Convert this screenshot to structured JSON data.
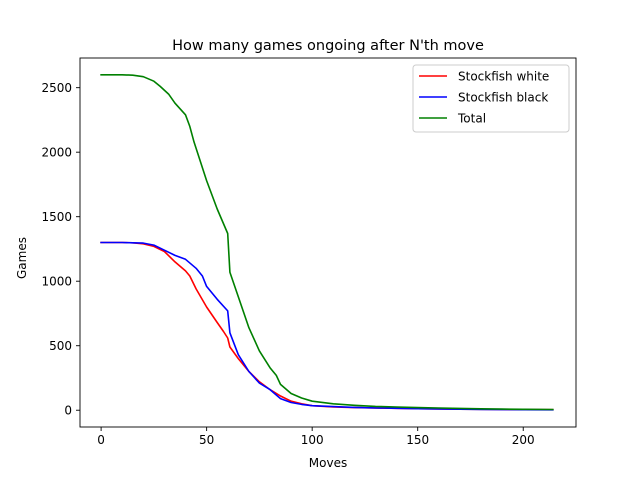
{
  "chart_data": {
    "type": "line",
    "title": "How many games ongoing after N'th move",
    "xlabel": "Moves",
    "ylabel": "Games",
    "xlim": [
      -10,
      225
    ],
    "ylim": [
      -130,
      2730
    ],
    "xticks": [
      0,
      50,
      100,
      150,
      200
    ],
    "yticks": [
      0,
      500,
      1000,
      1500,
      2000,
      2500
    ],
    "grid": false,
    "legend_position": "top-right",
    "series": [
      {
        "name": "Stockfish white",
        "color": "#ff0000",
        "x": [
          0,
          5,
          10,
          15,
          20,
          25,
          30,
          35,
          40,
          42,
          45,
          50,
          55,
          58,
          60,
          61,
          65,
          70,
          75,
          80,
          85,
          90,
          95,
          100,
          110,
          120,
          130,
          140,
          150,
          160,
          170,
          180,
          190,
          200,
          214
        ],
        "y": [
          1300,
          1300,
          1300,
          1298,
          1290,
          1270,
          1230,
          1150,
          1080,
          1040,
          940,
          800,
          680,
          610,
          560,
          490,
          400,
          300,
          220,
          160,
          110,
          70,
          50,
          35,
          25,
          20,
          17,
          15,
          12,
          10,
          8,
          7,
          6,
          5,
          4
        ]
      },
      {
        "name": "Stockfish black",
        "color": "#0000ff",
        "x": [
          0,
          5,
          10,
          15,
          20,
          25,
          30,
          35,
          40,
          45,
          48,
          50,
          55,
          60,
          61,
          65,
          70,
          75,
          80,
          85,
          90,
          95,
          100,
          110,
          120,
          130,
          140,
          150,
          160,
          170,
          180,
          190,
          200,
          214
        ],
        "y": [
          1300,
          1300,
          1300,
          1298,
          1295,
          1280,
          1240,
          1200,
          1170,
          1100,
          1040,
          960,
          860,
          770,
          600,
          430,
          300,
          210,
          160,
          90,
          60,
          45,
          35,
          28,
          22,
          18,
          15,
          12,
          10,
          8,
          6,
          5,
          4,
          3
        ]
      },
      {
        "name": "Total",
        "color": "#008000",
        "x": [
          0,
          5,
          10,
          15,
          20,
          25,
          28,
          32,
          35,
          40,
          42,
          44,
          47,
          50,
          55,
          60,
          61,
          65,
          70,
          75,
          80,
          83,
          85,
          90,
          95,
          100,
          110,
          120,
          130,
          140,
          150,
          160,
          170,
          180,
          190,
          200,
          214
        ],
        "y": [
          2600,
          2600,
          2600,
          2597,
          2585,
          2550,
          2510,
          2450,
          2380,
          2290,
          2200,
          2080,
          1930,
          1780,
          1560,
          1370,
          1070,
          880,
          640,
          460,
          330,
          270,
          200,
          130,
          95,
          70,
          50,
          38,
          30,
          25,
          20,
          17,
          14,
          11,
          9,
          7,
          6
        ]
      }
    ]
  }
}
